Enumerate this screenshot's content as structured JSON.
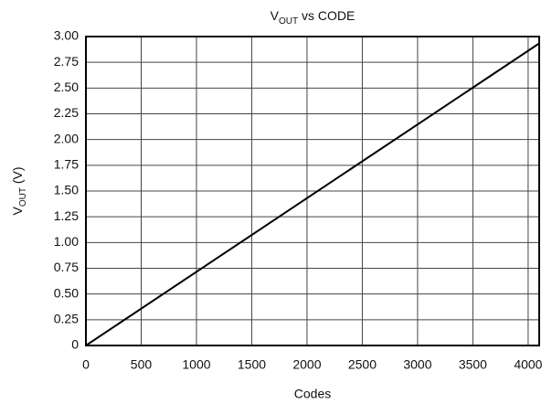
{
  "chart_data": {
    "type": "line",
    "title": {
      "base": "V",
      "sub": "OUT",
      "text": " vs CODE"
    },
    "ylabel": {
      "base": "V",
      "sub": "OUT",
      "text": " (V)"
    },
    "xlabel": "Codes",
    "x": [
      0,
      4095
    ],
    "series": [
      {
        "color": "#000000",
        "values": [
          0,
          2.93
        ]
      }
    ],
    "xlim": [
      0,
      4100
    ],
    "xticks": [
      0,
      500,
      1000,
      1500,
      2000,
      2500,
      3000,
      3500,
      4000
    ],
    "ylim": [
      0,
      3
    ],
    "yticks": [
      0,
      0.25,
      {
        "value": 0.5,
        "label": "0.50"
      },
      0.75,
      {
        "value": 1,
        "label": "1.00"
      },
      1.25,
      {
        "value": 1.5,
        "label": "1.50"
      },
      1.75,
      {
        "value": 2,
        "label": "2.00"
      },
      2.25,
      {
        "value": 2.5,
        "label": "2.50"
      },
      2.75,
      {
        "value": 3,
        "label": "3.00"
      }
    ],
    "grid": true
  }
}
